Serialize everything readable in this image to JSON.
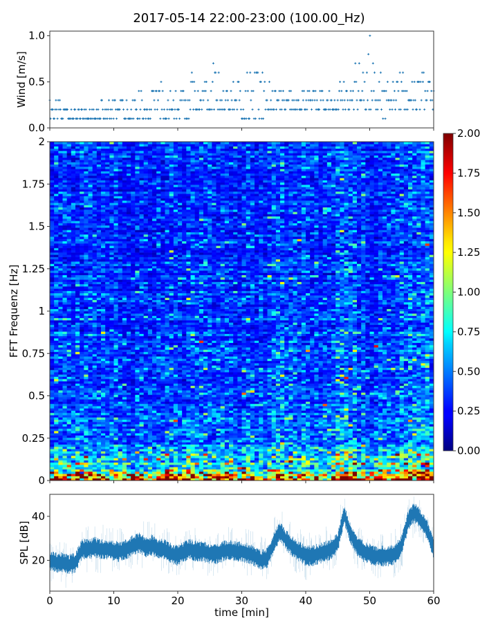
{
  "chart_data": [
    {
      "type": "scatter",
      "title": "2017-05-14 22:00-23:00 (100.00_Hz)",
      "xlabel": "",
      "ylabel": "Wind [m/s]",
      "xlim": [
        0,
        60
      ],
      "ylim": [
        0,
        1.05
      ],
      "yticks": [
        "0.0",
        "0.5",
        "1.0"
      ],
      "marker": "+",
      "color": "#1f77b4",
      "note_levels": [
        0.1,
        0.2,
        0.3,
        0.4,
        0.5,
        0.6,
        0.7,
        0.8,
        0.9,
        1.0
      ],
      "wind_range_by_minute": {
        "minutes": [
          0,
          5,
          10,
          15,
          17,
          20,
          25,
          27,
          30,
          33,
          35,
          40,
          45,
          48,
          50,
          52,
          55,
          60
        ],
        "low": [
          0.1,
          0.1,
          0.1,
          0.1,
          0.1,
          0.1,
          0.2,
          0.2,
          0.1,
          0.1,
          0.2,
          0.2,
          0.2,
          0.2,
          0.2,
          0.1,
          0.2,
          0.2
        ],
        "high": [
          0.3,
          0.2,
          0.3,
          0.4,
          0.5,
          0.4,
          0.8,
          0.5,
          0.6,
          0.7,
          0.4,
          0.4,
          0.5,
          0.7,
          1.0,
          0.6,
          0.6,
          0.6
        ]
      }
    },
    {
      "type": "heatmap",
      "title": "",
      "xlabel": "",
      "ylabel": "FFT Frequenz [Hz]",
      "xlim": [
        0,
        60
      ],
      "ylim": [
        0,
        2
      ],
      "yticks": [
        "0",
        "0.25",
        "0.5",
        "0.75",
        "1",
        "1.25",
        "1.5",
        "1.75",
        "2"
      ],
      "colormap": "jet",
      "frequency_profile": {
        "freq_hz": [
          0,
          0.02,
          0.05,
          0.1,
          0.15,
          0.25,
          0.5,
          1.0,
          1.5,
          2.0
        ],
        "mean_level": [
          1.7,
          1.2,
          0.9,
          0.65,
          0.5,
          0.42,
          0.36,
          0.32,
          0.3,
          0.3
        ]
      },
      "colorbar": {
        "range": [
          0,
          2
        ],
        "ticks": [
          "0.00",
          "0.25",
          "0.50",
          "0.75",
          "1.00",
          "1.25",
          "1.50",
          "1.75",
          "2.00"
        ]
      }
    },
    {
      "type": "line",
      "title": "",
      "xlabel": "time [min]",
      "ylabel": "SPL [dB]",
      "xlim": [
        0,
        60
      ],
      "ylim": [
        6,
        50
      ],
      "xticks": [
        "0",
        "10",
        "20",
        "30",
        "40",
        "50",
        "60"
      ],
      "yticks": [
        "20",
        "40"
      ],
      "color": "#1f77b4",
      "x": [
        0,
        1,
        2,
        3,
        4,
        5,
        6,
        7,
        8,
        9,
        10,
        11,
        12,
        13,
        14,
        15,
        16,
        17,
        18,
        19,
        20,
        21,
        22,
        23,
        24,
        25,
        26,
        27,
        28,
        29,
        30,
        31,
        32,
        33,
        34,
        35,
        36,
        37,
        38,
        39,
        40,
        41,
        42,
        43,
        44,
        45,
        46,
        47,
        48,
        49,
        50,
        51,
        52,
        53,
        54,
        55,
        56,
        57,
        58,
        59,
        60
      ],
      "mean": [
        20,
        19,
        19,
        18,
        19,
        25,
        25,
        26,
        25,
        25,
        24,
        24,
        25,
        27,
        28,
        26,
        27,
        25,
        25,
        23,
        22,
        24,
        25,
        24,
        24,
        23,
        23,
        24,
        25,
        24,
        24,
        23,
        22,
        20,
        21,
        28,
        33,
        29,
        26,
        24,
        22,
        22,
        23,
        24,
        25,
        28,
        41,
        32,
        27,
        24,
        23,
        22,
        22,
        22,
        23,
        27,
        38,
        42,
        38,
        34,
        25
      ],
      "spread_db": 4
    }
  ]
}
